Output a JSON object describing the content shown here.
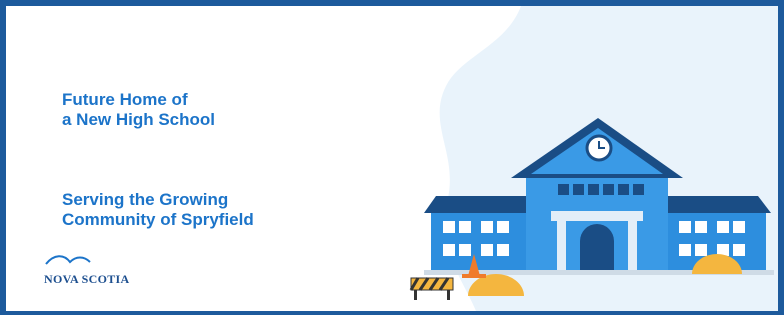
{
  "headline": {
    "lines": [
      "Future Home of",
      "a New High School"
    ]
  },
  "subheadline": {
    "lines": [
      "Serving the Growing",
      "Community of Spryfield"
    ]
  },
  "logo": {
    "text": "NOVA SCOTIA"
  }
}
